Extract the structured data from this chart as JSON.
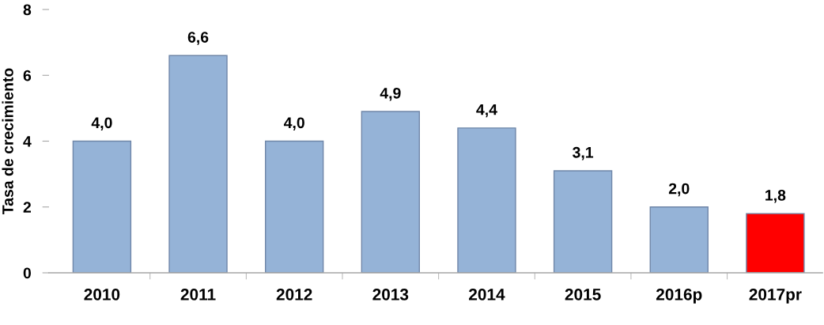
{
  "chart_data": {
    "type": "bar",
    "ylabel": "Tasa de crecimiento",
    "categories": [
      "2010",
      "2011",
      "2012",
      "2013",
      "2014",
      "2015",
      "2016p",
      "2017pr"
    ],
    "values": [
      4.0,
      6.6,
      4.0,
      4.9,
      4.4,
      3.1,
      2.0,
      1.8
    ],
    "colors": [
      "#95b3d7",
      "#95b3d7",
      "#95b3d7",
      "#95b3d7",
      "#95b3d7",
      "#95b3d7",
      "#95b3d7",
      "#ff0000"
    ],
    "value_labels": [
      "4,0",
      "6,6",
      "4,0",
      "4,9",
      "4,4",
      "3,1",
      "2,0",
      "1,8"
    ],
    "ylim": [
      0,
      8
    ],
    "yticks": [
      0,
      2,
      4,
      6,
      8
    ],
    "grid": false
  }
}
